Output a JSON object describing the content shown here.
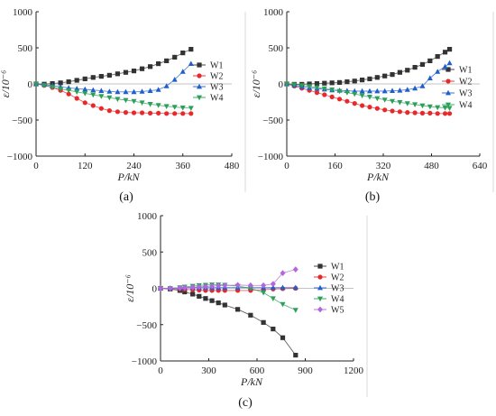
{
  "figure": {
    "panel_labels": [
      "(a)",
      "(b)",
      "(c)"
    ]
  },
  "chart_data": [
    {
      "type": "line",
      "panel": "(a)",
      "xlabel": "P/kN",
      "ylabel": "ε/10⁻⁶",
      "xlim": [
        0,
        480
      ],
      "ylim": [
        -1000,
        1000
      ],
      "xticks": [
        "0",
        "120",
        "240",
        "360",
        "480"
      ],
      "yticks": [
        "1000",
        "500",
        "0",
        "−500",
        "−1000"
      ],
      "x": [
        0,
        20,
        40,
        60,
        80,
        100,
        120,
        140,
        160,
        180,
        200,
        220,
        240,
        260,
        280,
        300,
        320,
        340,
        360,
        380
      ],
      "legend_position": "right",
      "series": [
        {
          "name": "W1",
          "color": "#333333",
          "marker": "square",
          "values": [
            0,
            -3,
            5,
            15,
            30,
            50,
            70,
            90,
            105,
            120,
            140,
            160,
            180,
            210,
            240,
            280,
            320,
            370,
            430,
            480
          ]
        },
        {
          "name": "W2",
          "color": "#e8282b",
          "marker": "circle",
          "values": [
            0,
            -20,
            -50,
            -90,
            -140,
            -200,
            -260,
            -300,
            -340,
            -370,
            -385,
            -395,
            -400,
            -400,
            -405,
            -405,
            -410,
            -410,
            -410,
            -410
          ]
        },
        {
          "name": "W3",
          "color": "#1f5fcc",
          "marker": "triangle-up",
          "values": [
            0,
            -10,
            -25,
            -40,
            -55,
            -65,
            -75,
            -85,
            -95,
            -105,
            -110,
            -110,
            -110,
            -105,
            -95,
            -80,
            -30,
            60,
            170,
            280
          ]
        },
        {
          "name": "W4",
          "color": "#2ca05a",
          "marker": "triangle-down",
          "values": [
            0,
            -20,
            -45,
            -70,
            -90,
            -110,
            -130,
            -150,
            -170,
            -190,
            -210,
            -225,
            -240,
            -260,
            -280,
            -295,
            -310,
            -320,
            -330,
            -335
          ]
        }
      ]
    },
    {
      "type": "line",
      "panel": "(b)",
      "xlabel": "P/kN",
      "ylabel": "ε/10⁻⁶",
      "xlim": [
        0,
        640
      ],
      "ylim": [
        -1000,
        1000
      ],
      "xticks": [
        "0",
        "160",
        "320",
        "480",
        "640"
      ],
      "yticks": [
        "1000",
        "500",
        "0",
        "−500",
        "−1000"
      ],
      "x": [
        0,
        25,
        50,
        75,
        100,
        125,
        150,
        175,
        200,
        225,
        250,
        275,
        300,
        325,
        350,
        375,
        400,
        425,
        450,
        475,
        500,
        525,
        540
      ],
      "legend_position": "right",
      "series": [
        {
          "name": "W1",
          "color": "#333333",
          "marker": "square",
          "values": [
            0,
            -5,
            -5,
            0,
            5,
            10,
            15,
            20,
            30,
            40,
            55,
            70,
            90,
            110,
            130,
            160,
            190,
            230,
            270,
            320,
            380,
            440,
            480
          ]
        },
        {
          "name": "W2",
          "color": "#e8282b",
          "marker": "circle",
          "values": [
            0,
            -30,
            -60,
            -90,
            -120,
            -150,
            -180,
            -210,
            -240,
            -270,
            -300,
            -320,
            -340,
            -360,
            -375,
            -385,
            -395,
            -400,
            -405,
            -405,
            -410,
            -410,
            -410
          ]
        },
        {
          "name": "W3",
          "color": "#1f5fcc",
          "marker": "triangle-up",
          "values": [
            0,
            -20,
            -40,
            -55,
            -65,
            -75,
            -85,
            -90,
            -95,
            -100,
            -100,
            -100,
            -100,
            -100,
            -95,
            -90,
            -80,
            -60,
            -30,
            80,
            170,
            240,
            290
          ]
        },
        {
          "name": "W4",
          "color": "#2ca05a",
          "marker": "triangle-down",
          "values": [
            0,
            -10,
            -20,
            -35,
            -50,
            -65,
            -80,
            -100,
            -120,
            -140,
            -160,
            -180,
            -200,
            -220,
            -240,
            -255,
            -270,
            -285,
            -300,
            -315,
            -325,
            -330,
            -335
          ]
        }
      ]
    },
    {
      "type": "line",
      "panel": "(c)",
      "xlabel": "P/kN",
      "ylabel": "ε/10⁻⁶",
      "xlim": [
        0,
        1200
      ],
      "ylim": [
        -1000,
        1000
      ],
      "xticks": [
        "0",
        "300",
        "600",
        "900",
        "1200"
      ],
      "yticks": [
        "1000",
        "500",
        "0",
        "−500",
        "−1000"
      ],
      "x": [
        0,
        60,
        120,
        150,
        200,
        240,
        280,
        320,
        360,
        400,
        480,
        560,
        640,
        700,
        760,
        840
      ],
      "legend_position": "right",
      "series": [
        {
          "name": "W1",
          "color": "#333333",
          "marker": "square",
          "values": [
            0,
            -10,
            -30,
            -50,
            -80,
            -110,
            -140,
            -170,
            -200,
            -230,
            -290,
            -370,
            -470,
            -560,
            -680,
            -920
          ]
        },
        {
          "name": "W2",
          "color": "#e8282b",
          "marker": "circle",
          "values": [
            0,
            -5,
            -10,
            -15,
            -20,
            -25,
            -30,
            -30,
            -30,
            -30,
            -30,
            -30,
            -20,
            -10,
            -5,
            0
          ]
        },
        {
          "name": "W3",
          "color": "#1f5fcc",
          "marker": "triangle-up",
          "values": [
            0,
            0,
            5,
            10,
            10,
            10,
            10,
            10,
            10,
            10,
            10,
            10,
            10,
            10,
            10,
            10
          ]
        },
        {
          "name": "W4",
          "color": "#2ca05a",
          "marker": "triangle-down",
          "values": [
            0,
            0,
            10,
            20,
            30,
            40,
            45,
            50,
            50,
            45,
            30,
            0,
            -60,
            -140,
            -220,
            -300
          ]
        },
        {
          "name": "W5",
          "color": "#b266e0",
          "marker": "diamond",
          "values": [
            0,
            0,
            5,
            10,
            15,
            20,
            25,
            30,
            35,
            40,
            45,
            40,
            40,
            60,
            210,
            260
          ]
        }
      ]
    }
  ]
}
